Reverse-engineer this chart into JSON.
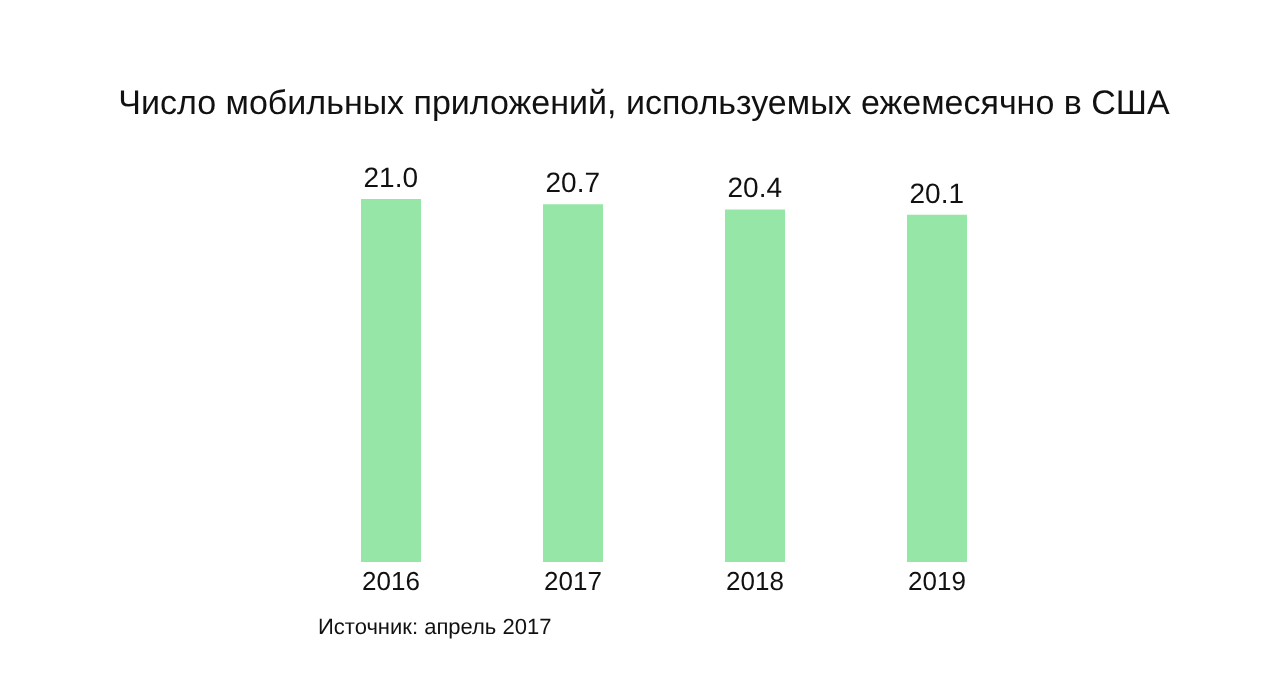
{
  "chart_data": {
    "type": "bar",
    "title": "Число мобильных приложений, используемых ежемесячно в США",
    "categories": [
      "2016",
      "2017",
      "2018",
      "2019"
    ],
    "values": [
      21.0,
      20.7,
      20.4,
      20.1
    ],
    "value_labels": [
      "21.0",
      "20.7",
      "20.4",
      "20.1"
    ],
    "color": "#96e6a8",
    "grid": false,
    "legend": false,
    "annotations": [
      "Источник: апрель 2017"
    ]
  }
}
